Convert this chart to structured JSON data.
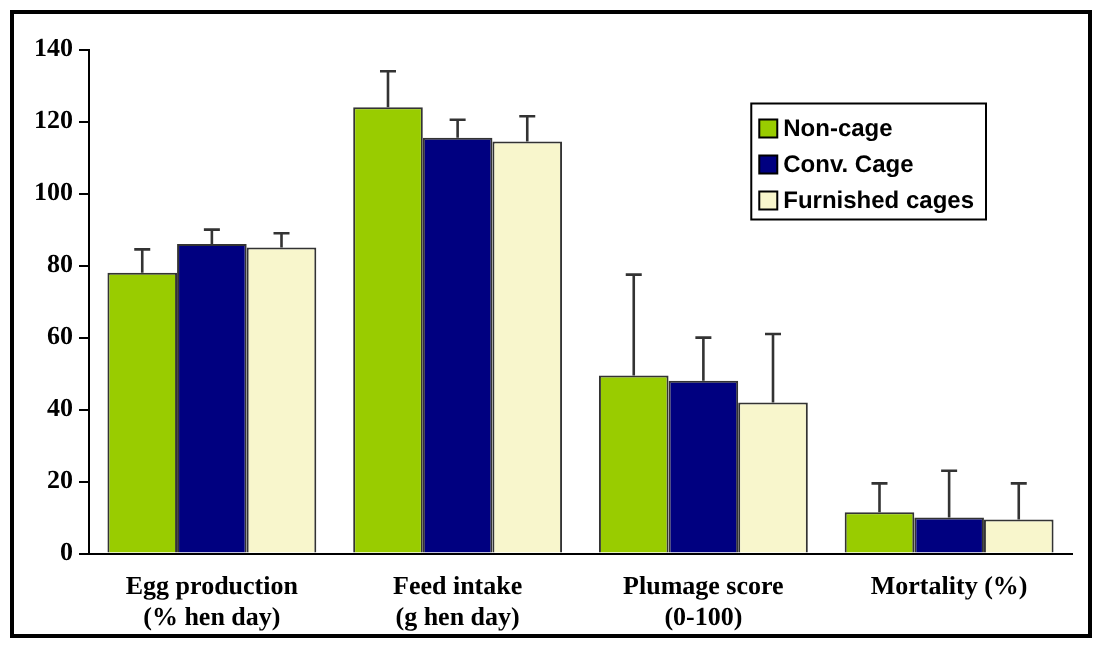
{
  "chart_data": {
    "type": "bar",
    "categories": [
      "Egg production\n(% hen day)",
      "Feed intake\n(g hen day)",
      "Plumage score\n(0-100)",
      "Mortality (%)"
    ],
    "series": [
      {
        "name": "Non-cage",
        "color": "#99cc00",
        "values": [
          78,
          124,
          49.5,
          11.5
        ],
        "errors": [
          6.5,
          10,
          28,
          8
        ]
      },
      {
        "name": "Conv. Cage",
        "color": "#000080",
        "values": [
          86,
          115.5,
          48,
          10
        ],
        "errors": [
          4,
          5,
          12,
          13
        ]
      },
      {
        "name": "Furnished cages",
        "color": "#f8f6cc",
        "values": [
          85,
          114.5,
          42,
          9.5
        ],
        "errors": [
          4,
          7,
          19,
          10
        ]
      }
    ],
    "ylim": [
      0,
      140
    ],
    "yticks": [
      0,
      20,
      40,
      60,
      80,
      100,
      120,
      140
    ],
    "grid": false,
    "legend": "top right"
  }
}
